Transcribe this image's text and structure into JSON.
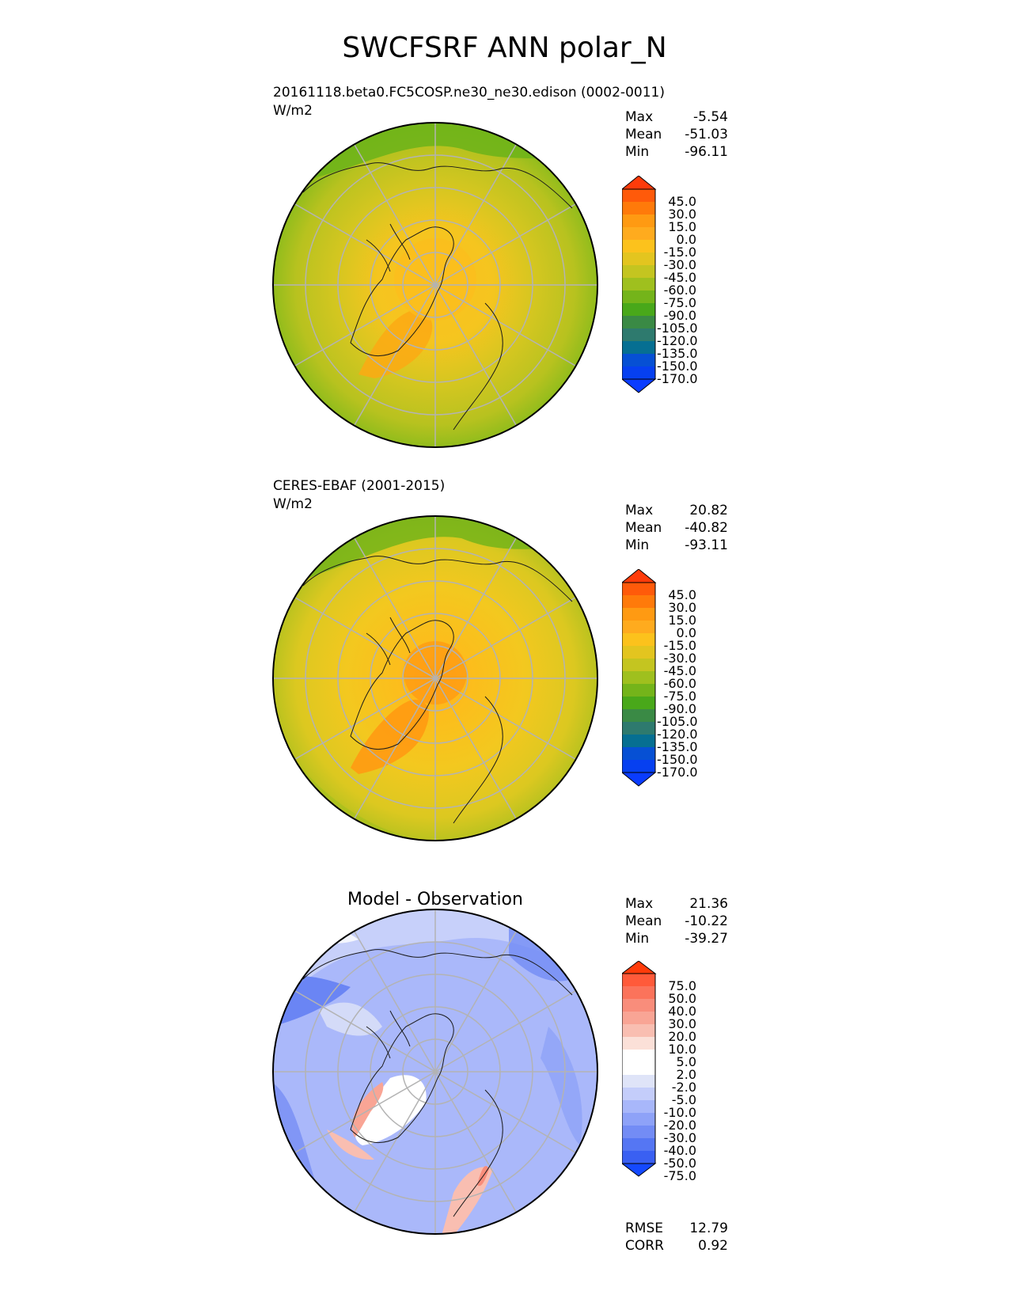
{
  "figure": {
    "title": "SWCFSRF ANN polar_N"
  },
  "panels": [
    {
      "title": "20161118.beta0.FC5COSP.ne30_ne30.edison (0002-0011)",
      "units": "W/m2",
      "stats": [
        {
          "label": "Max",
          "value": "-5.54"
        },
        {
          "label": "Mean",
          "value": "-51.03"
        },
        {
          "label": "Min",
          "value": "-96.11"
        }
      ],
      "colorbar_labels": [
        "45.0",
        "30.0",
        "15.0",
        "0.0",
        "-15.0",
        "-30.0",
        "-45.0",
        "-60.0",
        "-75.0",
        "-90.0",
        "-105.0",
        "-120.0",
        "-135.0",
        "-150.0",
        "-170.0"
      ]
    },
    {
      "title": "CERES-EBAF (2001-2015)",
      "units": "W/m2",
      "stats": [
        {
          "label": "Max",
          "value": "20.82"
        },
        {
          "label": "Mean",
          "value": "-40.82"
        },
        {
          "label": "Min",
          "value": "-93.11"
        }
      ],
      "colorbar_labels": [
        "45.0",
        "30.0",
        "15.0",
        "0.0",
        "-15.0",
        "-30.0",
        "-45.0",
        "-60.0",
        "-75.0",
        "-90.0",
        "-105.0",
        "-120.0",
        "-135.0",
        "-150.0",
        "-170.0"
      ]
    },
    {
      "title": "Model - Observation",
      "stats": [
        {
          "label": "Max",
          "value": "21.36"
        },
        {
          "label": "Mean",
          "value": "-10.22"
        },
        {
          "label": "Min",
          "value": "-39.27"
        }
      ],
      "colorbar_labels": [
        "75.0",
        "50.0",
        "40.0",
        "30.0",
        "20.0",
        "10.0",
        "5.0",
        "2.0",
        "-2.0",
        "-5.0",
        "-10.0",
        "-20.0",
        "-30.0",
        "-40.0",
        "-50.0",
        "-75.0"
      ],
      "metrics": [
        {
          "label": "RMSE",
          "value": "12.79"
        },
        {
          "label": "CORR",
          "value": "0.92"
        }
      ]
    }
  ],
  "colors": {
    "abs_scale": [
      "#ff3b0a",
      "#ff5a0a",
      "#ff7a0a",
      "#ff9a12",
      "#ffab1e",
      "#fcc21c",
      "#e3c51f",
      "#c4c520",
      "#9fc01e",
      "#74b41a",
      "#49a81a",
      "#3a8a45",
      "#2e7a6e",
      "#066f92",
      "#0650d4",
      "#0a3cff"
    ],
    "diff_scale": [
      "#ff3b0a",
      "#ff5a3a",
      "#fb735b",
      "#f98d7b",
      "#f9a595",
      "#f9beb1",
      "#fbe0d8",
      "#ffffff",
      "#ffffff",
      "#dfe4f8",
      "#c4cdfa",
      "#a8b7fa",
      "#8ea2f8",
      "#738cf5",
      "#5576f3",
      "#3a60f2",
      "#1449ff"
    ]
  }
}
